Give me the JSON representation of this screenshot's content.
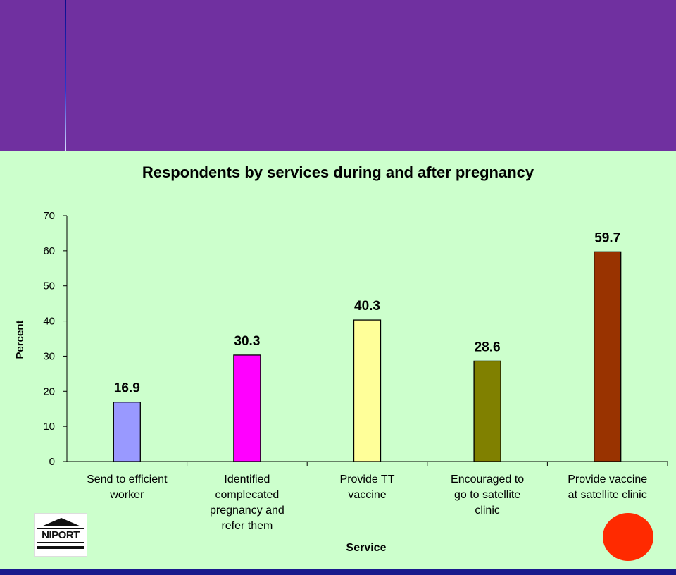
{
  "chart_data": {
    "type": "bar",
    "title": "Respondents by services during and after pregnancy",
    "xlabel": "Service",
    "ylabel": "Percent",
    "ylim": [
      0,
      70
    ],
    "yticks": [
      0,
      10,
      20,
      30,
      40,
      50,
      60,
      70
    ],
    "grid": false,
    "categories": [
      [
        "Send to efficient",
        "worker"
      ],
      [
        "Identified",
        "complecated",
        "pregnancy and",
        "refer them"
      ],
      [
        "Provide TT",
        "vaccine"
      ],
      [
        "Encouraged to",
        "go to satellite",
        "clinic"
      ],
      [
        "Provide vaccine",
        "at satellite clinic"
      ]
    ],
    "values": [
      16.9,
      30.3,
      40.3,
      28.6,
      59.7
    ],
    "data_labels": [
      "16.9",
      "30.3",
      "40.3",
      "28.6",
      "59.7"
    ],
    "colors": [
      "#9999ff",
      "#ff00ff",
      "#ffff99",
      "#808000",
      "#993300"
    ]
  },
  "logo": {
    "text": "NIPORT"
  },
  "colors": {
    "header_band": "#7030a0",
    "background": "#ccffcc",
    "accent_dot": "#ff2a00",
    "footer_band": "#1a1a8c"
  }
}
